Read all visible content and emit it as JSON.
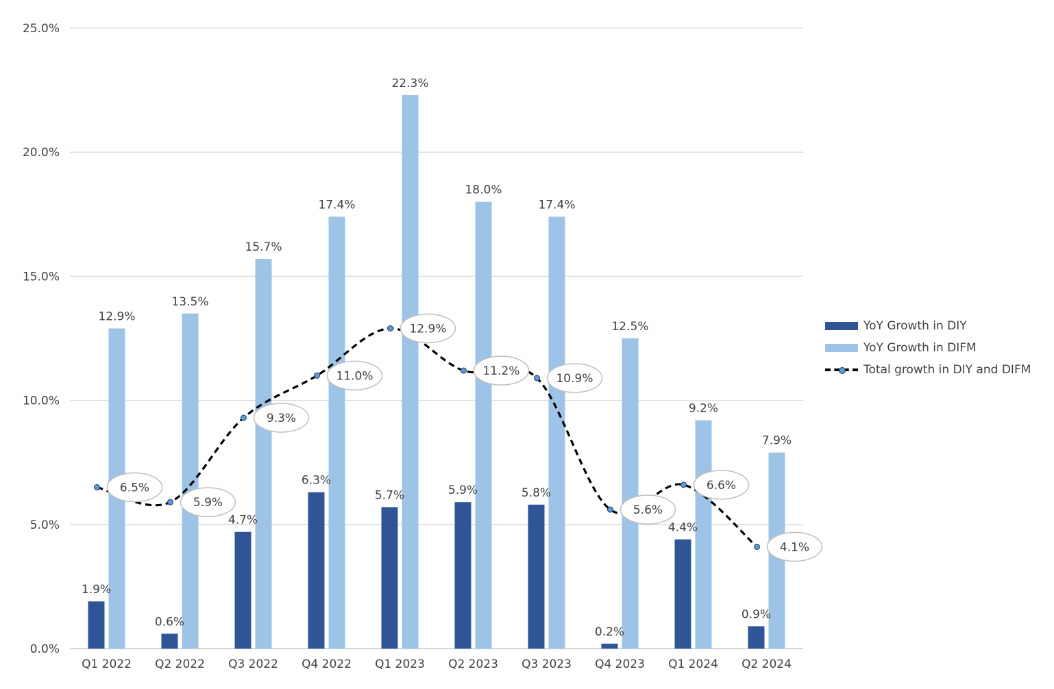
{
  "chart_data": {
    "type": "bar",
    "categories": [
      "Q1 2022",
      "Q2 2022",
      "Q3 2022",
      "Q4 2022",
      "Q1 2023",
      "Q2 2023",
      "Q3 2023",
      "Q4 2023",
      "Q1 2024",
      "Q2 2024"
    ],
    "series": [
      {
        "name": "YoY Growth in DIY",
        "type": "bar",
        "color": "#2f5597",
        "values": [
          1.9,
          0.6,
          4.7,
          6.3,
          5.7,
          5.9,
          5.8,
          0.2,
          4.4,
          0.9
        ],
        "labels": [
          "1.9%",
          "0.6%",
          "4.7%",
          "6.3%",
          "5.7%",
          "5.9%",
          "5.8%",
          "0.2%",
          "4.4%",
          "0.9%"
        ]
      },
      {
        "name": "YoY Growth in DIFM",
        "type": "bar",
        "color": "#9dc3e6",
        "values": [
          12.9,
          13.5,
          15.7,
          17.4,
          22.3,
          18.0,
          17.4,
          12.5,
          9.2,
          7.9
        ],
        "labels": [
          "12.9%",
          "13.5%",
          "15.7%",
          "17.4%",
          "22.3%",
          "18.0%",
          "17.4%",
          "12.5%",
          "9.2%",
          "7.9%"
        ]
      },
      {
        "name": "Total growth in DIY and DIFM",
        "type": "line",
        "style": "dashed smooth",
        "color": "#000000",
        "marker_color": "#5b9bd5",
        "values": [
          6.5,
          5.9,
          9.3,
          11.0,
          12.9,
          11.2,
          10.9,
          5.6,
          6.6,
          4.1
        ],
        "labels": [
          "6.5%",
          "5.9%",
          "9.3%",
          "11.0%",
          "12.9%",
          "11.2%",
          "10.9%",
          "5.6%",
          "6.6%",
          "4.1%"
        ]
      }
    ],
    "y_ticks": [
      "0.0%",
      "5.0%",
      "10.0%",
      "15.0%",
      "20.0%",
      "25.0%"
    ],
    "ylim": [
      0,
      25
    ],
    "grid": "horizontal",
    "legend": "right"
  }
}
